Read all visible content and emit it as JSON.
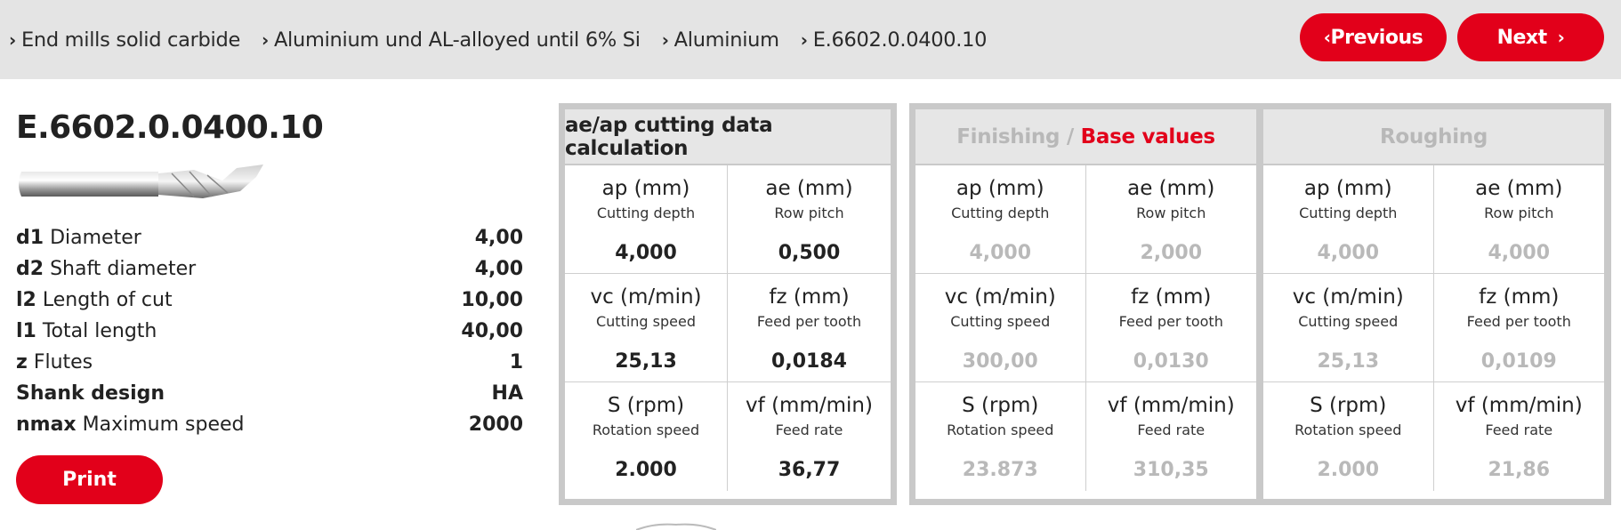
{
  "breadcrumbs": [
    {
      "label": "End mills solid carbide"
    },
    {
      "label": "Aluminium und AL-alloyed until 6% Si"
    },
    {
      "label": "Aluminium"
    },
    {
      "label": "E.6602.0.0400.10"
    }
  ],
  "nav": {
    "previous_label": "Previous",
    "next_label": "Next"
  },
  "product": {
    "title": "E.6602.0.0400.10",
    "specs": [
      {
        "key": "d1",
        "name": "Diameter",
        "value": "4,00"
      },
      {
        "key": "d2",
        "name": "Shaft diameter",
        "value": "4,00"
      },
      {
        "key": "l2",
        "name": "Length of cut",
        "value": "10,00"
      },
      {
        "key": "l1",
        "name": "Total length",
        "value": "40,00"
      },
      {
        "key": "z",
        "name": "Flutes",
        "value": "1"
      },
      {
        "key": "Shank design",
        "name": "",
        "value": "HA"
      },
      {
        "key": "nmax",
        "name": "Maximum speed",
        "value": "2000"
      }
    ],
    "print_label": "Print"
  },
  "calc": {
    "title": "ae/ap cutting data calculation",
    "cells": [
      {
        "label": "ap (mm)",
        "sub": "Cutting depth",
        "value": "4,000"
      },
      {
        "label": "ae (mm)",
        "sub": "Row pitch",
        "value": "0,500"
      },
      {
        "label": "vc (m/min)",
        "sub": "Cutting speed",
        "value": "25,13"
      },
      {
        "label": "fz (mm)",
        "sub": "Feed per tooth",
        "value": "0,0184"
      },
      {
        "label": "S (rpm)",
        "sub": "Rotation speed",
        "value": "2.000"
      },
      {
        "label": "vf (mm/min)",
        "sub": "Feed rate",
        "value": "36,77"
      }
    ]
  },
  "finishing": {
    "title_muted": "Finishing /",
    "title_red": "Base values",
    "cells": [
      {
        "label": "ap (mm)",
        "sub": "Cutting depth",
        "value": "4,000"
      },
      {
        "label": "ae (mm)",
        "sub": "Row pitch",
        "value": "2,000"
      },
      {
        "label": "vc (m/min)",
        "sub": "Cutting speed",
        "value": "300,00"
      },
      {
        "label": "fz (mm)",
        "sub": "Feed per tooth",
        "value": "0,0130"
      },
      {
        "label": "S (rpm)",
        "sub": "Rotation speed",
        "value": "23.873"
      },
      {
        "label": "vf (mm/min)",
        "sub": "Feed rate",
        "value": "310,35"
      }
    ]
  },
  "roughing": {
    "title": "Roughing",
    "cells": [
      {
        "label": "ap (mm)",
        "sub": "Cutting depth",
        "value": "4,000"
      },
      {
        "label": "ae (mm)",
        "sub": "Row pitch",
        "value": "4,000"
      },
      {
        "label": "vc (m/min)",
        "sub": "Cutting speed",
        "value": "25,13"
      },
      {
        "label": "fz (mm)",
        "sub": "Feed per tooth",
        "value": "0,0109"
      },
      {
        "label": "S (rpm)",
        "sub": "Rotation speed",
        "value": "2.000"
      },
      {
        "label": "vf (mm/min)",
        "sub": "Feed rate",
        "value": "21,86"
      }
    ]
  },
  "colors": {
    "accent": "#e2001a",
    "topbar": "#e4e4e4",
    "muted": "#b9b9b9"
  },
  "icons": {
    "breadcrumb_separator": "chevron-right-icon",
    "previous": "chevron-left-icon",
    "next": "chevron-right-icon"
  }
}
